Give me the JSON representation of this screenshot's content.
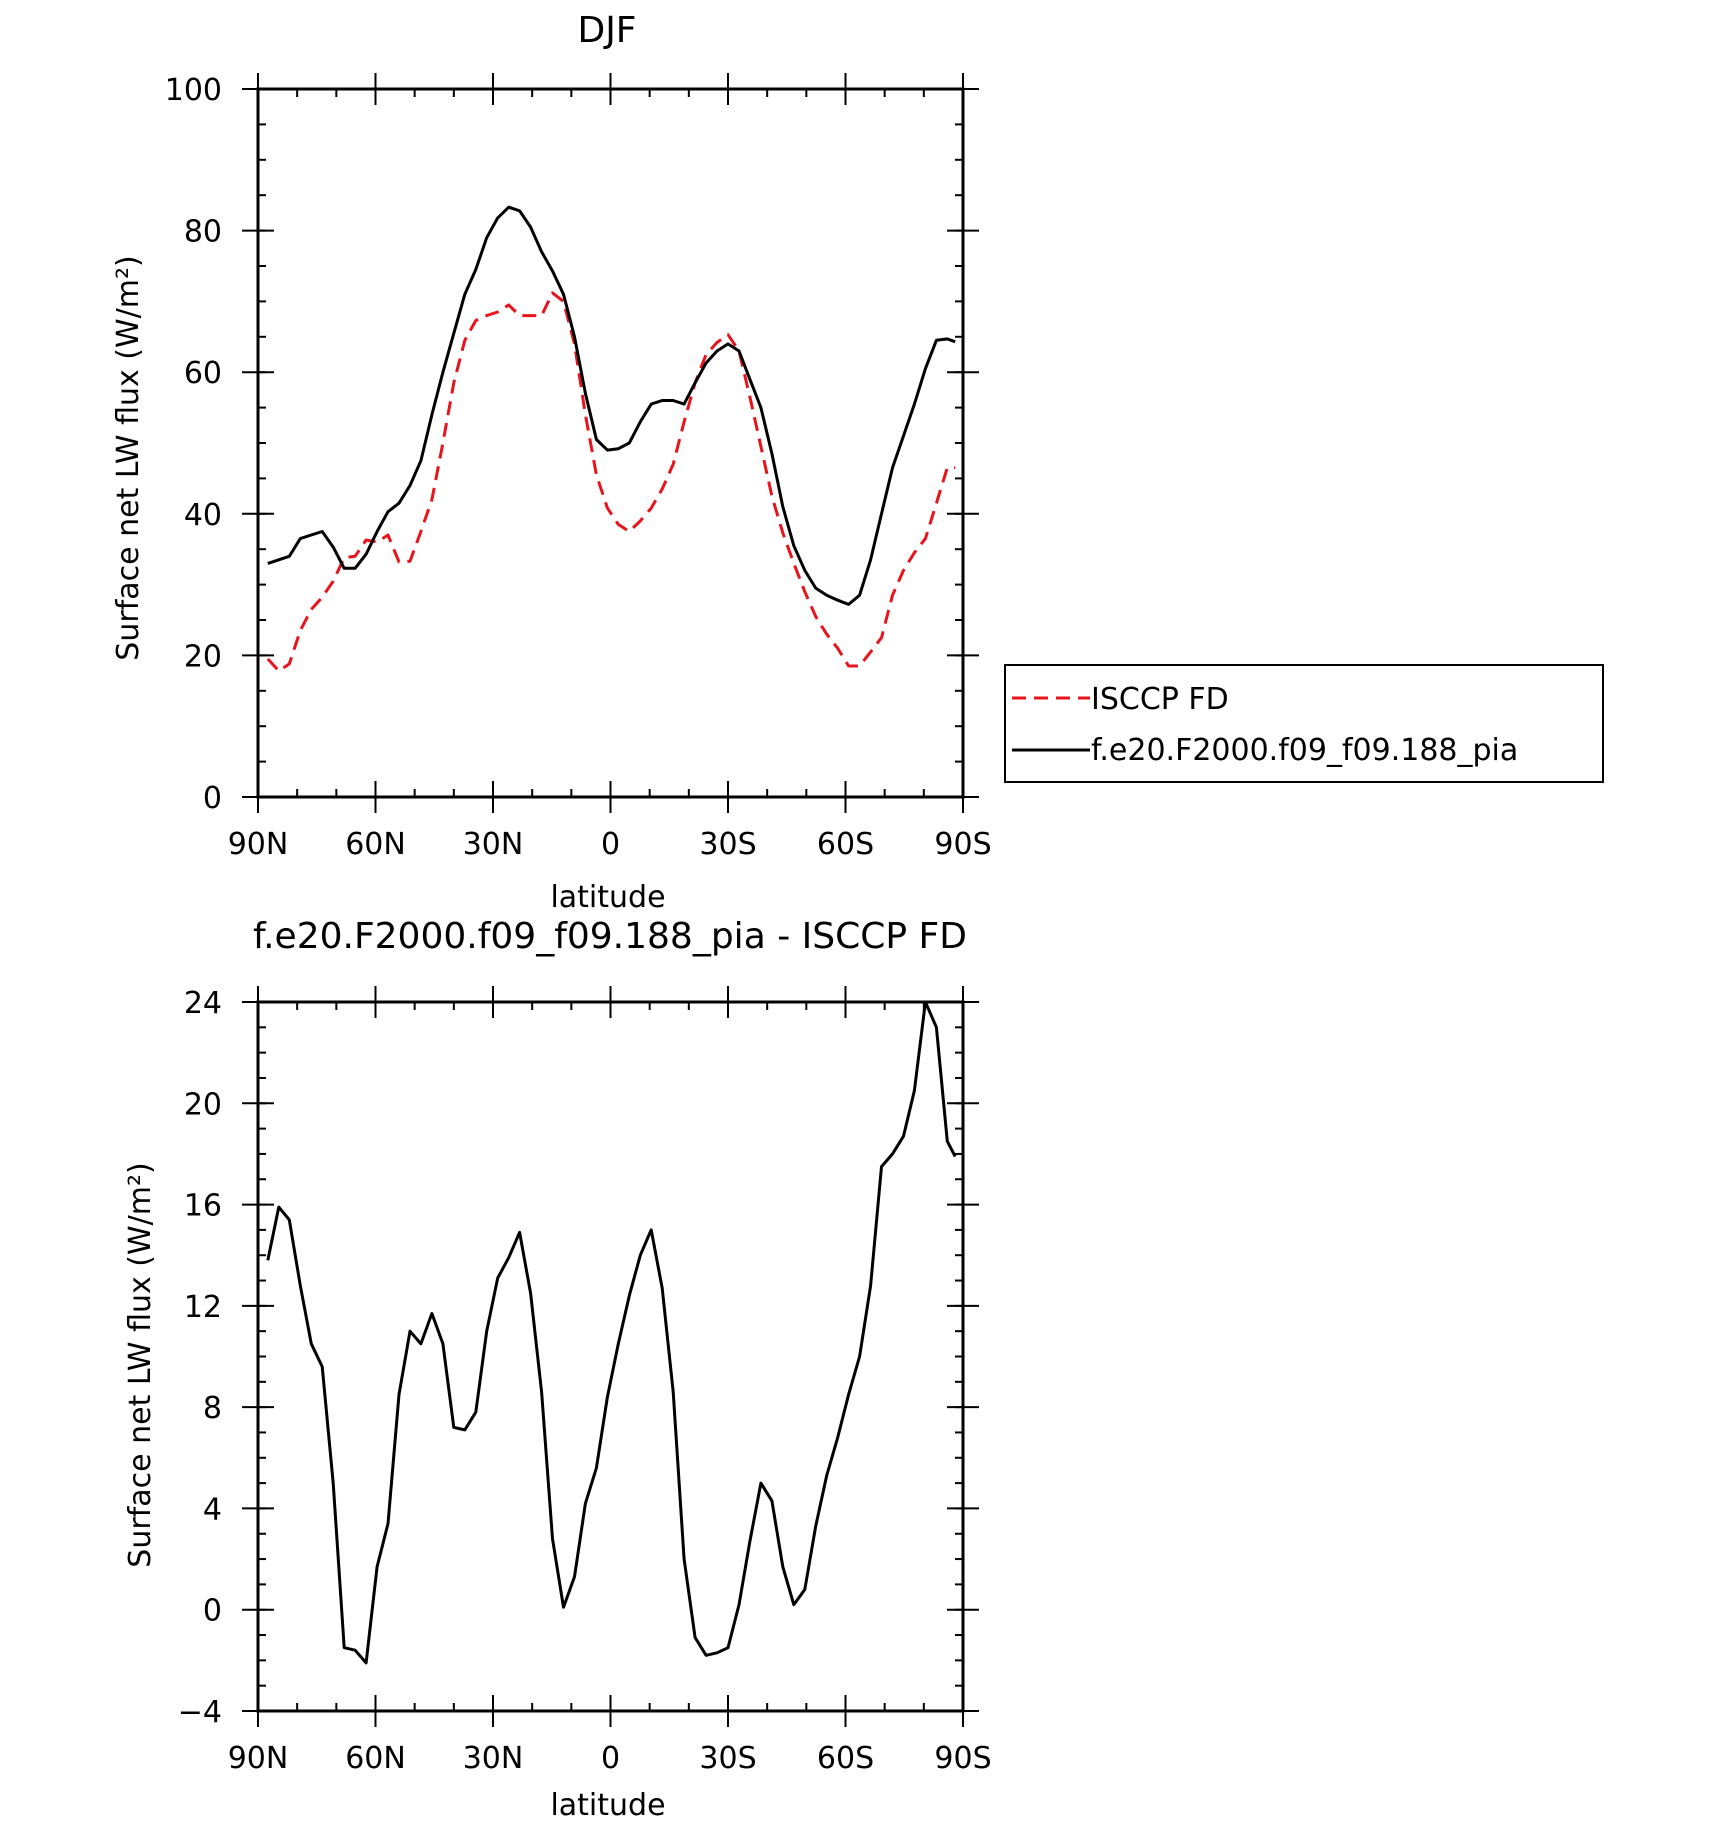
{
  "chart_data": [
    {
      "type": "line",
      "title": "DJF",
      "xlabel": "latitude",
      "ylabel": "Surface net LW flux (W/m²)",
      "ylim": [
        0,
        100
      ],
      "yticks": [
        0,
        20,
        40,
        60,
        80,
        100
      ],
      "xlim": [
        90,
        -90
      ],
      "xticks": [
        90,
        60,
        30,
        0,
        -30,
        -60,
        -90
      ],
      "xtick_labels": [
        "90N",
        "60N",
        "30N",
        "0",
        "30S",
        "60S",
        "90S"
      ],
      "grid": false,
      "legend_position": "right",
      "series": [
        {
          "name": "ISCCP FD",
          "color": "#e8141c",
          "dash": "dashed",
          "x": [
            87.5,
            84.7,
            82.0,
            79.2,
            76.4,
            73.6,
            70.8,
            68.0,
            65.2,
            62.4,
            59.6,
            56.8,
            54.0,
            51.2,
            48.4,
            45.6,
            42.8,
            40.0,
            37.2,
            34.4,
            31.6,
            28.8,
            26.0,
            23.2,
            20.4,
            17.6,
            14.8,
            12.0,
            9.2,
            6.4,
            3.6,
            0.8,
            -2.0,
            -4.8,
            -7.6,
            -10.4,
            -13.2,
            -16.0,
            -18.8,
            -21.6,
            -24.4,
            -27.2,
            -30.0,
            -32.8,
            -35.6,
            -38.4,
            -41.2,
            -44.0,
            -46.8,
            -49.6,
            -52.4,
            -55.2,
            -58.0,
            -60.8,
            -63.6,
            -66.4,
            -69.2,
            -72.0,
            -74.8,
            -77.6,
            -80.4,
            -83.2,
            -86.0,
            -88.0
          ],
          "y": [
            19.5,
            17.8,
            18.8,
            23.5,
            26.5,
            28.2,
            30.5,
            33.8,
            34.0,
            36.3,
            36.0,
            37.0,
            33.2,
            33.3,
            37.5,
            42.0,
            50.0,
            58.5,
            64.5,
            67.3,
            68.0,
            68.5,
            69.5,
            68.0,
            68.0,
            68.0,
            71.2,
            70.0,
            64.0,
            54.0,
            45.5,
            40.8,
            38.5,
            37.5,
            39.0,
            40.8,
            43.5,
            47.0,
            53.0,
            58.5,
            62.5,
            64.2,
            65.3,
            63.0,
            56.5,
            49.5,
            42.5,
            37.3,
            33.0,
            29.0,
            25.5,
            23.0,
            21.0,
            18.5,
            18.5,
            20.5,
            22.5,
            28.5,
            32.0,
            34.5,
            36.5,
            41.5,
            46.5,
            46.5
          ]
        },
        {
          "name": "f.e20.F2000.f09_f09.188_pia",
          "color": "#000000",
          "dash": "solid",
          "x": [
            87.5,
            84.7,
            82.0,
            79.2,
            76.4,
            73.6,
            70.8,
            68.0,
            65.2,
            62.4,
            59.6,
            56.8,
            54.0,
            51.2,
            48.4,
            45.6,
            42.8,
            40.0,
            37.2,
            34.4,
            31.6,
            28.8,
            26.0,
            23.2,
            20.4,
            17.6,
            14.8,
            12.0,
            9.2,
            6.4,
            3.6,
            0.8,
            -2.0,
            -4.8,
            -7.6,
            -10.4,
            -13.2,
            -16.0,
            -18.8,
            -21.6,
            -24.4,
            -27.2,
            -30.0,
            -32.8,
            -35.6,
            -38.4,
            -41.2,
            -44.0,
            -46.8,
            -49.6,
            -52.4,
            -55.2,
            -58.0,
            -60.8,
            -63.6,
            -66.4,
            -69.2,
            -72.0,
            -74.8,
            -77.6,
            -80.4,
            -83.2,
            -86.0,
            -88.0
          ],
          "y": [
            33.0,
            33.5,
            34.0,
            36.5,
            37.0,
            37.5,
            35.3,
            32.3,
            32.3,
            34.3,
            37.5,
            40.3,
            41.5,
            44.0,
            47.5,
            54.0,
            60.0,
            65.5,
            71.0,
            74.5,
            79.0,
            81.8,
            83.3,
            82.8,
            80.5,
            77.0,
            74.3,
            71.0,
            65.0,
            57.0,
            50.5,
            49.0,
            49.2,
            50.0,
            53.0,
            55.5,
            56.0,
            56.0,
            55.5,
            58.5,
            61.3,
            63.0,
            64.0,
            63.0,
            59.0,
            55.0,
            48.5,
            41.0,
            35.5,
            32.0,
            29.5,
            28.5,
            27.8,
            27.2,
            28.5,
            33.5,
            40.0,
            46.5,
            51.0,
            55.5,
            60.5,
            64.5,
            64.7,
            64.3
          ]
        }
      ]
    },
    {
      "type": "line",
      "title": "f.e20.F2000.f09_f09.188_pia - ISCCP FD",
      "xlabel": "latitude",
      "ylabel": "Surface net LW flux (W/m²)",
      "ylim": [
        -4,
        24
      ],
      "yticks": [
        -4,
        0,
        4,
        8,
        12,
        16,
        20,
        24
      ],
      "ytick_labels": [
        "−4",
        "0",
        "4",
        "8",
        "12",
        "16",
        "20",
        "24"
      ],
      "xlim": [
        90,
        -90
      ],
      "xticks": [
        90,
        60,
        30,
        0,
        -30,
        -60,
        -90
      ],
      "xtick_labels": [
        "90N",
        "60N",
        "30N",
        "0",
        "30S",
        "60S",
        "90S"
      ],
      "grid": false,
      "series": [
        {
          "color": "#000000",
          "dash": "solid",
          "x": [
            87.5,
            84.7,
            82.0,
            79.2,
            76.4,
            73.6,
            70.8,
            68.0,
            65.2,
            62.4,
            59.6,
            56.8,
            54.0,
            51.2,
            48.4,
            45.6,
            42.8,
            40.0,
            37.2,
            34.4,
            31.6,
            28.8,
            26.0,
            23.2,
            20.4,
            17.6,
            14.8,
            12.0,
            9.2,
            6.4,
            3.6,
            0.8,
            -2.0,
            -4.8,
            -7.6,
            -10.4,
            -13.2,
            -16.0,
            -18.8,
            -21.6,
            -24.4,
            -27.2,
            -30.0,
            -32.8,
            -35.6,
            -38.4,
            -41.2,
            -44.0,
            -46.8,
            -49.6,
            -52.4,
            -55.2,
            -58.0,
            -60.8,
            -63.6,
            -66.4,
            -69.2,
            -72.0,
            -74.8,
            -77.6,
            -80.4,
            -83.2,
            -86.0,
            -88.0
          ],
          "y": [
            13.8,
            15.9,
            15.4,
            12.8,
            10.5,
            9.6,
            5.0,
            -1.5,
            -1.6,
            -2.1,
            1.7,
            3.4,
            8.5,
            11.0,
            10.5,
            11.7,
            10.5,
            7.2,
            7.1,
            7.8,
            11.0,
            13.1,
            13.9,
            14.9,
            12.5,
            8.6,
            2.8,
            0.1,
            1.3,
            4.2,
            5.6,
            8.4,
            10.5,
            12.4,
            14.0,
            15.0,
            12.7,
            8.6,
            2.0,
            -1.1,
            -1.8,
            -1.7,
            -1.5,
            0.2,
            2.7,
            5.0,
            4.3,
            1.7,
            0.2,
            0.8,
            3.3,
            5.3,
            6.8,
            8.5,
            10.0,
            12.8,
            17.5,
            18.0,
            18.7,
            20.5,
            24.0,
            23.0,
            18.5,
            17.9
          ]
        }
      ]
    }
  ]
}
